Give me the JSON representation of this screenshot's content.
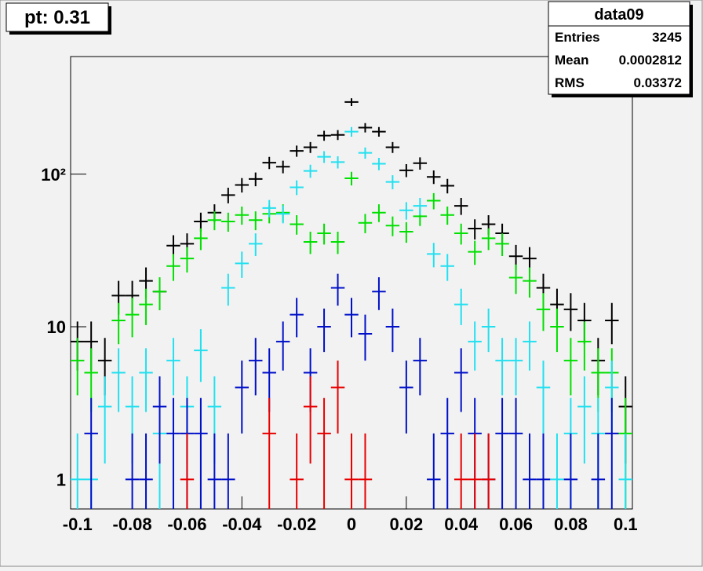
{
  "chart_data": {
    "type": "histogram_errors",
    "title": "pt: 0.31",
    "stats": {
      "title": "data09",
      "rows": [
        {
          "label": "Entries",
          "value": 3245
        },
        {
          "label": "Mean",
          "value": 0.0002812
        },
        {
          "label": "RMS",
          "value": 0.03372
        }
      ]
    },
    "x": [
      -0.1,
      -0.095,
      -0.09,
      -0.085,
      -0.08,
      -0.075,
      -0.07,
      -0.065,
      -0.06,
      -0.055,
      -0.05,
      -0.045,
      -0.04,
      -0.035,
      -0.03,
      -0.025,
      -0.02,
      -0.015,
      -0.01,
      -0.005,
      0,
      0.005,
      0.01,
      0.015,
      0.02,
      0.025,
      0.03,
      0.035,
      0.04,
      0.045,
      0.05,
      0.055,
      0.06,
      0.065,
      0.07,
      0.075,
      0.08,
      0.085,
      0.09,
      0.095,
      0.1
    ],
    "bin_width": 0.005,
    "xlim": [
      -0.1025,
      0.1025
    ],
    "xticks": [
      -0.1,
      -0.08,
      -0.06,
      -0.04,
      -0.02,
      0,
      0.02,
      0.04,
      0.06,
      0.08,
      0.1
    ],
    "ylim": [
      0.64,
      590
    ],
    "log_y": true,
    "yticks": [
      1,
      10,
      {
        "value": 100,
        "label": "10²"
      }
    ],
    "series": [
      {
        "color": "#000000",
        "values": [
          8,
          8,
          6,
          16,
          16,
          20,
          17,
          34,
          35,
          49,
          56,
          73,
          85,
          93,
          119,
          112,
          142,
          150,
          179,
          181,
          297,
          202,
          190,
          150,
          106,
          118,
          96,
          84,
          62,
          44,
          47,
          41,
          29,
          28,
          18,
          14,
          13,
          11,
          6,
          11,
          3
        ]
      },
      {
        "color": "#00e000",
        "values": [
          6,
          5,
          null,
          11,
          12,
          14,
          17,
          25,
          28,
          38,
          50,
          49,
          54,
          50,
          55,
          56,
          47,
          36,
          41,
          36,
          94,
          48,
          56,
          46,
          42,
          53,
          67,
          54,
          41,
          31,
          38,
          35,
          21,
          20,
          13,
          10,
          6,
          8,
          5,
          5,
          2
        ]
      },
      {
        "color": "#22e0f0",
        "values": [
          1,
          1,
          3,
          5,
          3,
          5,
          2,
          6,
          3,
          7,
          3,
          18,
          26,
          35,
          60,
          55,
          82,
          105,
          130,
          120,
          190,
          138,
          117,
          89,
          58,
          62,
          30,
          25,
          14,
          8,
          10,
          6,
          6,
          8,
          4,
          1,
          2,
          3,
          2,
          4,
          1
        ]
      },
      {
        "color": "#0010c8",
        "values": [
          null,
          2,
          null,
          null,
          1,
          1,
          3,
          2,
          2,
          2,
          1,
          1,
          4,
          6,
          5,
          8,
          12,
          5,
          10,
          18,
          12,
          9,
          17,
          10,
          4,
          6,
          1,
          2,
          5,
          2,
          1,
          2,
          2,
          1,
          1,
          null,
          1,
          null,
          1,
          2,
          null
        ]
      },
      {
        "color": "#e80000",
        "values": [
          null,
          null,
          null,
          null,
          null,
          null,
          null,
          null,
          1,
          null,
          null,
          null,
          null,
          null,
          2,
          null,
          1,
          3,
          2,
          4,
          1,
          1,
          null,
          null,
          null,
          null,
          null,
          null,
          1,
          1,
          1,
          null,
          null,
          null,
          null,
          null,
          null,
          null,
          null,
          null,
          null
        ]
      }
    ]
  }
}
